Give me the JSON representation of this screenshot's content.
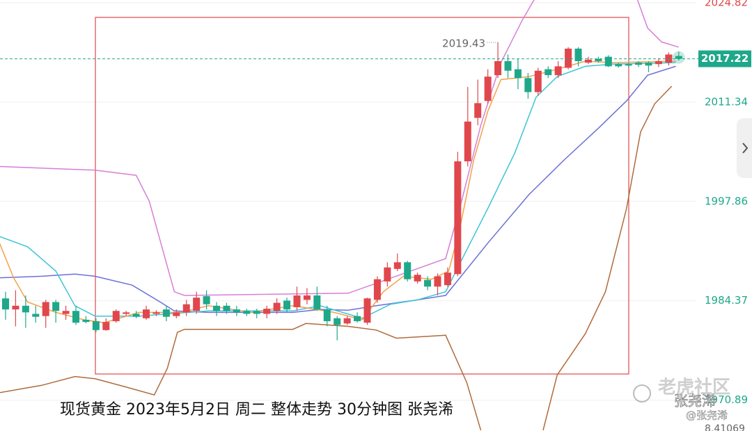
{
  "chart_data": {
    "type": "candlestick",
    "caption": "现货黄金 2023年5月2日 周二 整体走势 30分钟图  张尧浠",
    "watermark": [
      "老虎社区",
      "张尧浠",
      "@张尧浠"
    ],
    "indicator_value": "8.41069",
    "ylim": [
      1966.7,
      2025.2
    ],
    "yticks": [
      2024.82,
      2011.34,
      1997.86,
      1984.37,
      1970.89
    ],
    "ytick_colors": [
      "#e0474c",
      "#1ea889",
      "#1ea889",
      "#1ea889",
      "#1ea889"
    ],
    "grid": true,
    "up_color": "#e0474c",
    "down_color": "#1ea889",
    "high_annotation": 2019.43,
    "candles": [
      [
        1984.7,
        1985.6,
        1981.8,
        1983.2
      ],
      [
        1983.2,
        1985.8,
        1980.9,
        1983.7
      ],
      [
        1983.7,
        1985.1,
        1980.7,
        1982.8
      ],
      [
        1982.6,
        1983.7,
        1981.4,
        1982.2
      ],
      [
        1982.3,
        1984.5,
        1980.7,
        1984.2
      ],
      [
        1984.2,
        1984.5,
        1981.4,
        1983.0
      ],
      [
        1982.6,
        1983.7,
        1981.8,
        1983.0
      ],
      [
        1983.0,
        1983.7,
        1981.1,
        1981.4
      ],
      [
        1981.8,
        1982.3,
        1981.3,
        1981.5
      ],
      [
        1981.6,
        1982.0,
        1980.1,
        1980.4
      ],
      [
        1980.4,
        1982.0,
        1980.3,
        1981.5
      ],
      [
        1981.6,
        1983.2,
        1981.4,
        1983.0
      ],
      [
        1982.6,
        1983.0,
        1982.3,
        1982.8
      ],
      [
        1982.6,
        1983.0,
        1982.0,
        1982.2
      ],
      [
        1982.0,
        1983.7,
        1981.8,
        1983.2
      ],
      [
        1982.6,
        1983.1,
        1982.3,
        1982.8
      ],
      [
        1983.2,
        1983.7,
        1981.6,
        1982.2
      ],
      [
        1982.3,
        1983.2,
        1982.0,
        1982.8
      ],
      [
        1982.8,
        1984.5,
        1982.3,
        1983.9
      ],
      [
        1983.0,
        1985.6,
        1982.6,
        1984.8
      ],
      [
        1985.0,
        1985.8,
        1983.2,
        1983.9
      ],
      [
        1983.7,
        1984.2,
        1982.3,
        1983.0
      ],
      [
        1983.7,
        1984.1,
        1982.6,
        1983.0
      ],
      [
        1983.2,
        1983.7,
        1982.3,
        1982.8
      ],
      [
        1983.0,
        1983.3,
        1982.3,
        1982.6
      ],
      [
        1983.0,
        1983.3,
        1982.0,
        1982.6
      ],
      [
        1982.6,
        1983.7,
        1982.0,
        1983.3
      ],
      [
        1983.0,
        1984.7,
        1982.6,
        1984.1
      ],
      [
        1984.4,
        1984.8,
        1982.8,
        1983.2
      ],
      [
        1983.5,
        1986.3,
        1983.0,
        1985.1
      ],
      [
        1984.5,
        1986.1,
        1983.9,
        1985.1
      ],
      [
        1985.1,
        1986.3,
        1983.0,
        1983.2
      ],
      [
        1983.2,
        1983.7,
        1980.9,
        1981.6
      ],
      [
        1982.0,
        1982.3,
        1979.0,
        1981.1
      ],
      [
        1981.3,
        1982.3,
        1981.1,
        1982.0
      ],
      [
        1982.3,
        1982.8,
        1981.4,
        1981.6
      ],
      [
        1981.4,
        1984.8,
        1981.1,
        1984.7
      ],
      [
        1984.5,
        1987.7,
        1984.1,
        1987.3
      ],
      [
        1987.0,
        1989.6,
        1986.3,
        1988.9
      ],
      [
        1988.7,
        1990.8,
        1988.4,
        1989.6
      ],
      [
        1989.6,
        1989.8,
        1987.0,
        1987.3
      ],
      [
        1987.0,
        1988.2,
        1986.7,
        1987.9
      ],
      [
        1987.2,
        1987.7,
        1985.8,
        1986.3
      ],
      [
        1986.3,
        1988.1,
        1985.1,
        1987.7
      ],
      [
        1986.5,
        1988.9,
        1986.3,
        1988.2
      ],
      [
        1988.0,
        2004.6,
        1987.7,
        2003.3
      ],
      [
        2003.3,
        2013.4,
        2002.6,
        2008.7
      ],
      [
        2009.2,
        2014.4,
        2008.2,
        2011.2
      ],
      [
        2011.5,
        2015.8,
        2011.1,
        2014.8
      ],
      [
        2015.0,
        2019.43,
        2014.6,
        2016.9
      ],
      [
        2016.9,
        2017.8,
        2014.6,
        2015.6
      ],
      [
        2015.8,
        2017.2,
        2013.1,
        2014.6
      ],
      [
        2014.6,
        2015.3,
        2011.8,
        2012.7
      ],
      [
        2012.7,
        2016.0,
        2012.2,
        2015.6
      ],
      [
        2015.8,
        2016.2,
        2014.6,
        2015.0
      ],
      [
        2015.0,
        2016.9,
        2014.6,
        2016.2
      ],
      [
        2016.0,
        2018.8,
        2015.8,
        2018.6
      ],
      [
        2018.6,
        2018.8,
        2016.2,
        2016.9
      ],
      [
        2016.7,
        2017.5,
        2016.5,
        2017.1
      ],
      [
        2017.2,
        2017.5,
        2016.7,
        2016.9
      ],
      [
        2017.5,
        2017.7,
        2016.1,
        2016.2
      ],
      [
        2016.5,
        2016.7,
        2016.0,
        2016.2
      ],
      [
        2016.5,
        2016.7,
        2016.1,
        2016.3
      ],
      [
        2016.7,
        2016.9,
        2016.1,
        2016.4
      ],
      [
        2016.7,
        2016.9,
        2015.4,
        2016.3
      ],
      [
        2016.5,
        2017.3,
        2016.1,
        2016.9
      ],
      [
        2016.7,
        2018.1,
        2016.3,
        2017.8
      ],
      [
        2017.6,
        2018.2,
        2017.0,
        2017.22
      ]
    ],
    "series": [
      {
        "color": "#d67fd6",
        "x": [
          -0.6,
          8.9,
          13.0,
          14.3,
          16.8,
          17.8,
          34.1,
          43.8,
          45.2,
          47.3,
          49.3,
          51.4,
          52.8,
          null,
          62.9,
          63.9,
          65.3,
          67.0
        ],
        "values": [
          2002.6,
          2002.1,
          2001.4,
          1997.9,
          1985.6,
          1985.1,
          1985.4,
          1990.1,
          1996.9,
          2008.2,
          2016.7,
          2022.4,
          2025.7,
          null,
          2025.2,
          2021.4,
          2019.5,
          2018.8
        ]
      },
      {
        "color": "#b06a3a",
        "x": [
          -0.6,
          3.6,
          6.9,
          8.9,
          11.9,
          14.8,
          16.1,
          17.1,
          17.8,
          28.6,
          29.9,
          34.1,
          36.9,
          38.9,
          43.8,
          45.9,
          47.3,
          null,
          53.5,
          54.9,
          57.7,
          59.7,
          61.8,
          63.2,
          64.6,
          66.3
        ],
        "values": [
          1971.9,
          1972.9,
          1974.1,
          1973.8,
          1972.7,
          1971.6,
          1975.2,
          1980.1,
          1980.5,
          1980.5,
          1981.3,
          1980.9,
          1980.4,
          1979.3,
          1979.7,
          1973.3,
          1966.8,
          null,
          1966.8,
          1974.3,
          1979.9,
          1985.6,
          1996.9,
          2007.3,
          2011.1,
          2013.5
        ]
      },
      {
        "color": "#6a6fd8",
        "x": [
          -0.6,
          3.6,
          6.9,
          8.9,
          12.6,
          15.4,
          16.8,
          20.2,
          28.6,
          31.3,
          34.1,
          36.9,
          41.0,
          43.8,
          48.0,
          52.1,
          55.6,
          59.0,
          61.8,
          63.9,
          66.7
        ],
        "values": [
          1987.5,
          1987.7,
          1988.0,
          1987.7,
          1986.5,
          1984.2,
          1983.0,
          1982.8,
          1982.8,
          1983.2,
          1983.1,
          1983.7,
          1984.5,
          1985.1,
          1992.2,
          1998.8,
          2003.5,
          2007.8,
          2011.5,
          2015.0,
          2016.2
        ]
      },
      {
        "color": "#3ec5d5",
        "x": [
          -0.6,
          2.2,
          5.0,
          6.9,
          8.9,
          13.3,
          20.2,
          28.6,
          31.3,
          35.5,
          38.3,
          41.0,
          43.8,
          45.2,
          48.0,
          50.7,
          52.8,
          54.9,
          57.7,
          60.4,
          66.7
        ],
        "values": [
          1993.1,
          1991.7,
          1988.4,
          1983.7,
          1982.3,
          1982.3,
          1983.0,
          1983.0,
          1983.7,
          1982.0,
          1983.9,
          1984.5,
          1985.6,
          1989.4,
          1996.9,
          2004.5,
          2012.0,
          2014.8,
          2016.2,
          2016.5,
          2016.7
        ]
      },
      {
        "color": "#f5a04a",
        "x": [
          -0.6,
          0.8,
          2.2,
          5.0,
          7.8,
          9.8,
          13.3,
          17.5,
          20.2,
          24.4,
          28.6,
          32.7,
          35.5,
          37.6,
          39.6,
          42.4,
          44.1,
          45.2,
          46.6,
          48.0,
          49.3,
          52.1,
          54.9,
          57.7,
          60.4,
          66.7
        ],
        "values": [
          1992.2,
          1987.5,
          1984.2,
          1982.8,
          1981.8,
          1981.4,
          1982.8,
          1982.8,
          1983.7,
          1982.8,
          1983.7,
          1982.8,
          1981.8,
          1985.6,
          1987.7,
          1987.3,
          1988.4,
          1994.1,
          2003.5,
          2010.1,
          2014.4,
          2014.8,
          2015.8,
          2016.9,
          2016.7,
          2016.9
        ]
      }
    ]
  }
}
